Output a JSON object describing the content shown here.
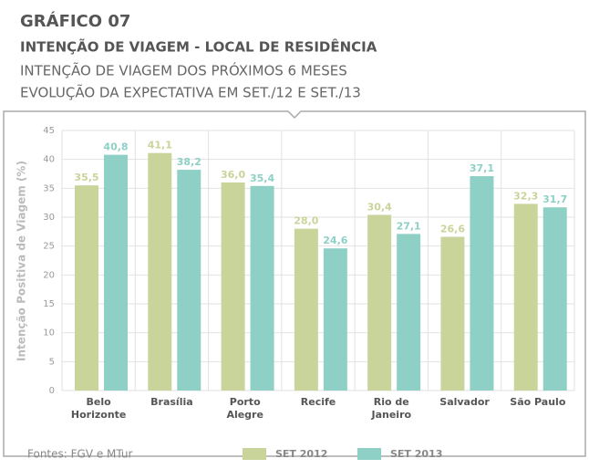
{
  "chart_data": {
    "type": "bar",
    "title": "GRÁFICO 07",
    "subtitle": "INTENÇÃO DE VIAGEM - LOCAL DE RESIDÊNCIA",
    "description": [
      "INTENÇÃO DE VIAGEM DOS PRÓXIMOS 6 MESES",
      "EVOLUÇÃO DA EXPECTATIVA EM SET./12 E SET./13"
    ],
    "y_label": "Intenção Positiva de Viagem (%)",
    "source": "Fontes: FGV e MTur",
    "categories": [
      "Belo Horizonte",
      "Brasília",
      "Porto Alegre",
      "Recife",
      "Rio de Janeiro",
      "Salvador",
      "São Paulo"
    ],
    "series": [
      {
        "name": "SET 2012",
        "color": "#c9d49a",
        "values": [
          35.5,
          41.1,
          36.0,
          28.0,
          30.4,
          26.6,
          32.3
        ],
        "value_labels": [
          "35,5",
          "41,1",
          "36,0",
          "28,0",
          "30,4",
          "26,6",
          "32,3"
        ]
      },
      {
        "name": "SET 2013",
        "color": "#8fd0c6",
        "values": [
          40.8,
          38.2,
          35.4,
          24.6,
          27.1,
          37.1,
          31.7
        ],
        "value_labels": [
          "40,8",
          "38,2",
          "35,4",
          "24,6",
          "27,1",
          "37,1",
          "31,7"
        ]
      }
    ],
    "ylim": [
      0,
      45
    ],
    "yticks": [
      0,
      5,
      10,
      15,
      20,
      25,
      30,
      35,
      40,
      45
    ],
    "grid": true
  }
}
